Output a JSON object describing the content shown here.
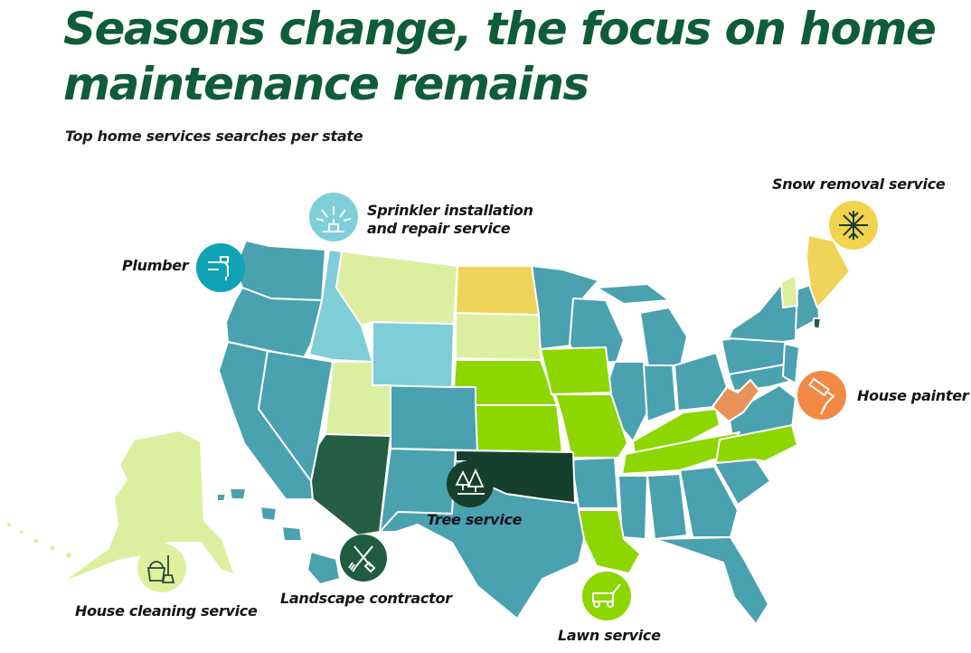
{
  "title_line1": "Seasons change, the focus on home",
  "title_line2": "maintenance remains",
  "subtitle": "Top home services searches per state",
  "legend": {
    "plumber": {
      "label": "Plumber",
      "color": "#0fa3b5",
      "icon": "faucet-pipe-icon"
    },
    "sprinkler": {
      "label_line1": "Sprinkler installation",
      "label_line2": "and repair service",
      "color": "#7dd0d8",
      "icon": "sprinkler-icon"
    },
    "snow": {
      "label": "Snow removal service",
      "color": "#f2d34e",
      "icon": "snowflake-icon"
    },
    "painter": {
      "label": "House painter",
      "color": "#f28a45",
      "icon": "paint-roller-icon"
    },
    "tree": {
      "label": "Tree service",
      "color": "#173f2d",
      "icon": "pine-trees-icon"
    },
    "landscape": {
      "label": "Landscape contractor",
      "color": "#1f5c42",
      "icon": "shovel-rake-icon"
    },
    "lawn": {
      "label": "Lawn service",
      "color": "#8ed600",
      "icon": "lawn-mower-icon"
    },
    "cleaning": {
      "label": "House cleaning service",
      "color": "#dff0a0",
      "icon": "bucket-broom-icon"
    }
  },
  "map_colors": {
    "plumber_state": "#4aa1b0",
    "sprinkler_state": "#7fcdd6",
    "snow_state": "#f0d45a",
    "painter_state": "#e8925a",
    "tree_state": "#173f2d",
    "landscape_state": "#265e45",
    "lawn_state": "#8ed600",
    "cleaning_state": "#dcefa0"
  }
}
